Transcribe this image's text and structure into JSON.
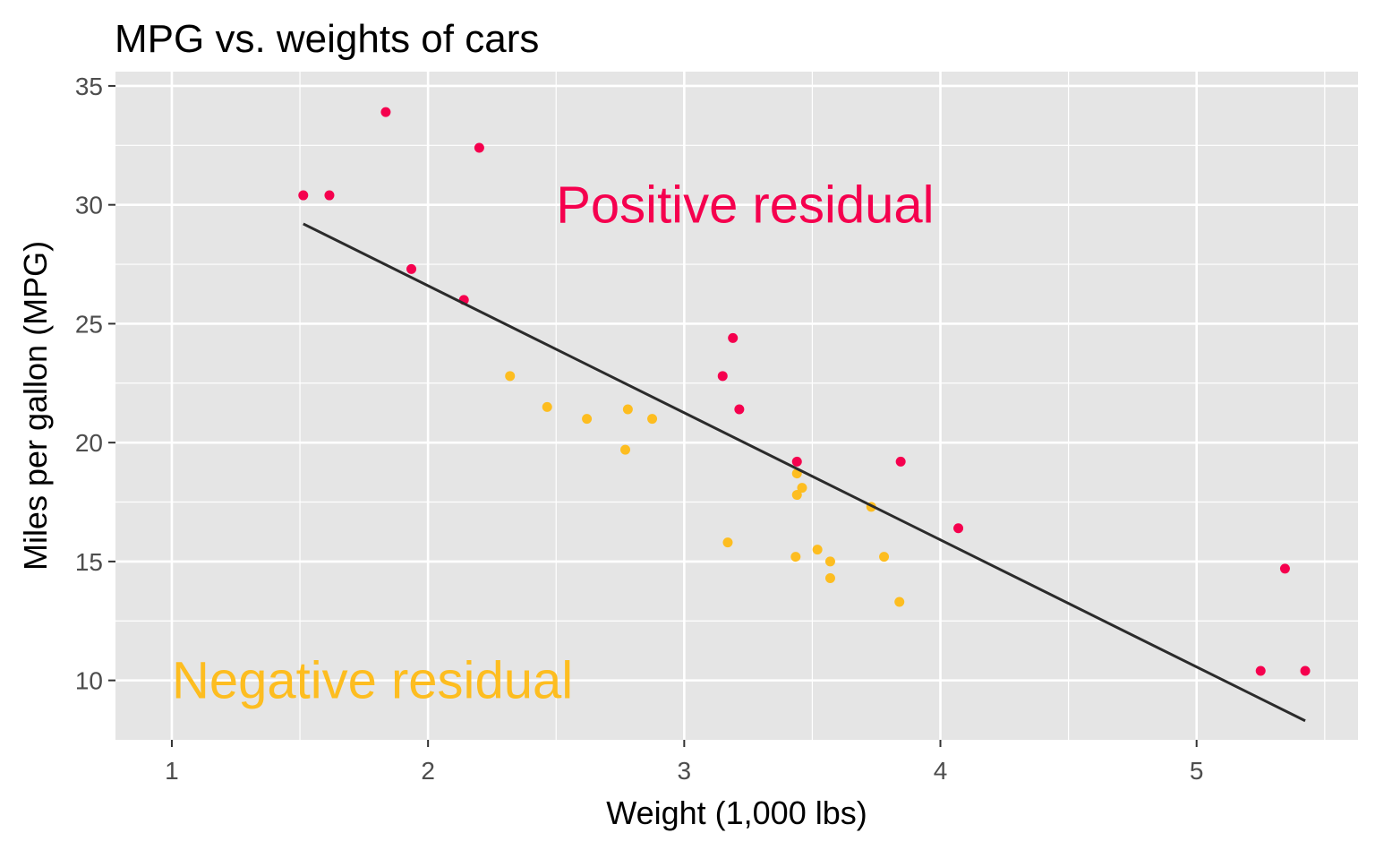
{
  "chart_data": {
    "type": "scatter",
    "title": "MPG vs. weights of cars",
    "xlabel": "Weight (1,000 lbs)",
    "ylabel": "Miles per gallon (MPG)",
    "xlim": [
      0.78,
      5.63
    ],
    "ylim": [
      7.5,
      35.6
    ],
    "x_ticks": [
      1,
      2,
      3,
      4,
      5
    ],
    "y_ticks": [
      10,
      15,
      20,
      25,
      30,
      35
    ],
    "grid": true,
    "legend": "none",
    "colors": {
      "panel": "#e5e5e5",
      "grid": "#ffffff",
      "positive": "#f5004e",
      "negative": "#fdbd20",
      "line": "#2b2b2b"
    },
    "series": [
      {
        "key": "positive",
        "points": [
          {
            "x": 1.513,
            "y": 30.4
          },
          {
            "x": 1.615,
            "y": 30.4
          },
          {
            "x": 1.835,
            "y": 33.9
          },
          {
            "x": 1.935,
            "y": 27.3
          },
          {
            "x": 2.14,
            "y": 26.0
          },
          {
            "x": 2.2,
            "y": 32.4
          },
          {
            "x": 3.15,
            "y": 22.8
          },
          {
            "x": 3.19,
            "y": 24.4
          },
          {
            "x": 3.215,
            "y": 21.4
          },
          {
            "x": 3.44,
            "y": 19.2
          },
          {
            "x": 3.845,
            "y": 19.2
          },
          {
            "x": 4.07,
            "y": 16.4
          },
          {
            "x": 5.25,
            "y": 10.4
          },
          {
            "x": 5.345,
            "y": 14.7
          },
          {
            "x": 5.424,
            "y": 10.4
          }
        ]
      },
      {
        "key": "negative",
        "points": [
          {
            "x": 2.32,
            "y": 22.8
          },
          {
            "x": 2.465,
            "y": 21.5
          },
          {
            "x": 2.62,
            "y": 21.0
          },
          {
            "x": 2.77,
            "y": 19.7
          },
          {
            "x": 2.78,
            "y": 21.4
          },
          {
            "x": 2.875,
            "y": 21.0
          },
          {
            "x": 3.17,
            "y": 15.8
          },
          {
            "x": 3.435,
            "y": 15.2
          },
          {
            "x": 3.44,
            "y": 17.8
          },
          {
            "x": 3.44,
            "y": 18.7
          },
          {
            "x": 3.46,
            "y": 18.1
          },
          {
            "x": 3.52,
            "y": 15.5
          },
          {
            "x": 3.57,
            "y": 15.0
          },
          {
            "x": 3.57,
            "y": 14.3
          },
          {
            "x": 3.73,
            "y": 17.3
          },
          {
            "x": 3.78,
            "y": 15.2
          },
          {
            "x": 3.84,
            "y": 13.3
          }
        ]
      }
    ],
    "fit_line": {
      "x": [
        1.513,
        5.424
      ],
      "y": [
        29.2,
        8.3
      ]
    },
    "annotations": [
      {
        "text": "Positive residual",
        "x": 2.5,
        "y": 30.0,
        "color": "#f5004e"
      },
      {
        "text": "Negative residual",
        "x": 1.0,
        "y": 10.0,
        "color": "#fdbd20"
      }
    ]
  }
}
